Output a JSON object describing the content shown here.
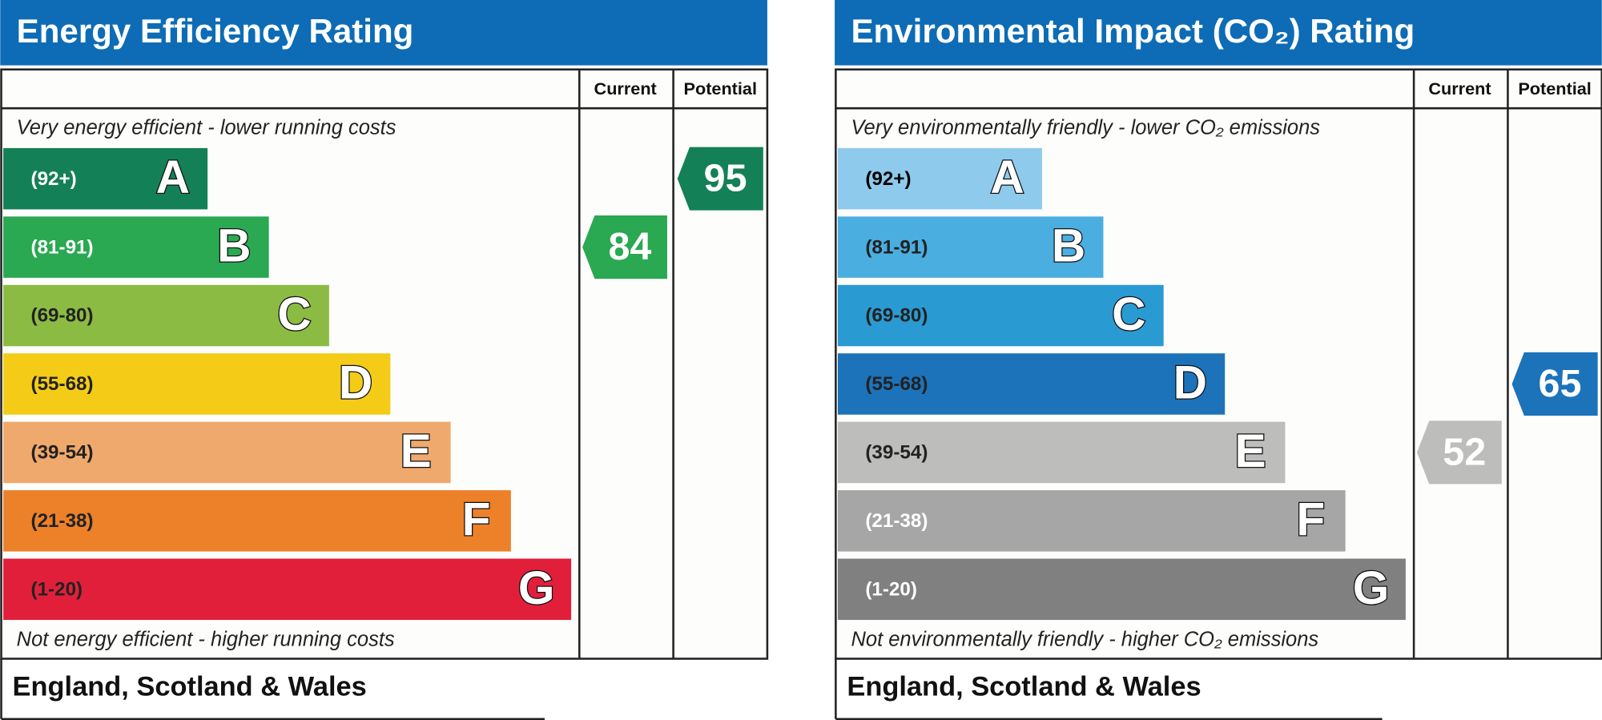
{
  "panels": [
    {
      "title": "Energy Efficiency Rating",
      "columns": [
        "Current",
        "Potential"
      ],
      "top_note": "Very energy efficient - lower running costs",
      "bands": [
        {
          "range": "(92+)",
          "letter": "A"
        },
        {
          "range": "(81-91)",
          "letter": "B"
        },
        {
          "range": "(69-80)",
          "letter": "C"
        },
        {
          "range": "(55-68)",
          "letter": "D"
        },
        {
          "range": "(39-54)",
          "letter": "E"
        },
        {
          "range": "(21-38)",
          "letter": "F"
        },
        {
          "range": "(1-20)",
          "letter": "G"
        }
      ],
      "current": 84,
      "potential": 95,
      "bottom_note": "Not energy efficient - higher running costs",
      "footer": "England, Scotland & Wales"
    },
    {
      "title": "Environmental Impact (CO₂) Rating",
      "columns": [
        "Current",
        "Potential"
      ],
      "top_note": "Very environmentally friendly - lower CO₂ emissions",
      "bands": [
        {
          "range": "(92+)",
          "letter": "A"
        },
        {
          "range": "(81-91)",
          "letter": "B"
        },
        {
          "range": "(69-80)",
          "letter": "C"
        },
        {
          "range": "(55-68)",
          "letter": "D"
        },
        {
          "range": "(39-54)",
          "letter": "E"
        },
        {
          "range": "(21-38)",
          "letter": "F"
        },
        {
          "range": "(1-20)",
          "letter": "G"
        }
      ],
      "current": 52,
      "potential": 65,
      "bottom_note": "Not environmentally friendly - higher CO₂ emissions",
      "footer": "England, Scotland & Wales"
    }
  ]
}
